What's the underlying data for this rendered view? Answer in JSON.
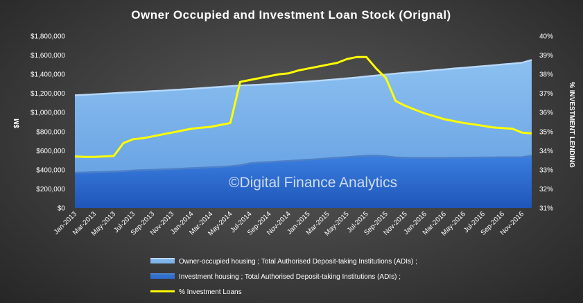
{
  "chart_data": {
    "type": "area",
    "title": "Owner Occupied and Investment Loan Stock (Orignal)",
    "ylabel": "$M",
    "y2label": "% INVESTMENT LENDING",
    "ylim": [
      0,
      1800000
    ],
    "y2lim": [
      31,
      40
    ],
    "grid": false,
    "legend_position": "bottom",
    "watermark": "©Digital Finance Analytics",
    "y_ticks": [
      "$0",
      "$200,000",
      "$400,000",
      "$600,000",
      "$800,000",
      "$1,000,000",
      "$1,200,000",
      "$1,400,000",
      "$1,600,000",
      "$1,800,000"
    ],
    "y2_ticks": [
      "31%",
      "32%",
      "33%",
      "34%",
      "35%",
      "36%",
      "37%",
      "38%",
      "39%",
      "40%"
    ],
    "x": [
      "Jan-2013",
      "Feb-2013",
      "Mar-2013",
      "Apr-2013",
      "May-2013",
      "Jun-2013",
      "Jul-2013",
      "Aug-2013",
      "Sep-2013",
      "Oct-2013",
      "Nov-2013",
      "Dec-2013",
      "Jan-2014",
      "Feb-2014",
      "Mar-2014",
      "Apr-2014",
      "May-2014",
      "Jun-2014",
      "Jul-2014",
      "Aug-2014",
      "Sep-2014",
      "Oct-2014",
      "Nov-2014",
      "Dec-2014",
      "Jan-2015",
      "Feb-2015",
      "Mar-2015",
      "Apr-2015",
      "May-2015",
      "Jun-2015",
      "Jul-2015",
      "Aug-2015",
      "Sep-2015",
      "Oct-2015",
      "Nov-2015",
      "Dec-2015",
      "Jan-2016",
      "Feb-2016",
      "Mar-2016",
      "Apr-2016",
      "May-2016",
      "Jun-2016",
      "Jul-2016",
      "Aug-2016",
      "Sep-2016",
      "Oct-2016",
      "Nov-2016",
      "Dec-2016"
    ],
    "x_tick_labels": [
      "Jan-2013",
      "Mar-2013",
      "May-2013",
      "Jul-2013",
      "Sep-2013",
      "Nov-2013",
      "Jan-2014",
      "Mar-2014",
      "May-2014",
      "Jul-2014",
      "Sep-2014",
      "Nov-2014",
      "Jan-2015",
      "Mar-2015",
      "May-2015",
      "Jul-2015",
      "Sep-2015",
      "Nov-2015",
      "Jan-2016",
      "Mar-2016",
      "May-2016",
      "Jul-2016",
      "Sep-2016",
      "Nov-2016"
    ],
    "series": [
      {
        "name": "Owner-occupied housing ;  Total Authorised Deposit-taking Institutions (ADIs) ;",
        "axis": "left",
        "color": "#7fb4ea",
        "values": [
          1180000,
          1185000,
          1190000,
          1196000,
          1202000,
          1208000,
          1213000,
          1218000,
          1224000,
          1229000,
          1235000,
          1241000,
          1248000,
          1255000,
          1262000,
          1269000,
          1276000,
          1283000,
          1286000,
          1291000,
          1297000,
          1303000,
          1310000,
          1317000,
          1324000,
          1332000,
          1340000,
          1348000,
          1357000,
          1367000,
          1377000,
          1387000,
          1397000,
          1407000,
          1416000,
          1425000,
          1433000,
          1442000,
          1451000,
          1460000,
          1468000,
          1477000,
          1485000,
          1494000,
          1503000,
          1512000,
          1521000,
          1550000
        ]
      },
      {
        "name": "Investment housing ;  Total Authorised Deposit-taking Institutions (ADIs) ;",
        "axis": "left",
        "color": "#2f6fcf",
        "values": [
          370000,
          372000,
          375000,
          378000,
          382000,
          387000,
          393000,
          397000,
          400000,
          404000,
          408000,
          412000,
          417000,
          421000,
          426000,
          431000,
          438000,
          447000,
          468000,
          476000,
          481000,
          487000,
          493000,
          499000,
          505000,
          512000,
          519000,
          526000,
          533000,
          540000,
          546000,
          548000,
          541000,
          530000,
          526000,
          525000,
          525000,
          525000,
          525000,
          526000,
          527000,
          528000,
          529000,
          530000,
          531000,
          532000,
          533000,
          548000
        ]
      },
      {
        "name": "% Investment Loans",
        "axis": "right",
        "color": "#ffff00",
        "values": [
          33.7,
          33.68,
          33.68,
          33.7,
          33.72,
          34.4,
          34.6,
          34.65,
          34.75,
          34.85,
          34.95,
          35.05,
          35.15,
          35.2,
          35.25,
          35.35,
          35.45,
          37.6,
          37.7,
          37.8,
          37.9,
          38.0,
          38.05,
          38.2,
          38.3,
          38.4,
          38.5,
          38.6,
          38.8,
          38.9,
          38.9,
          38.3,
          37.8,
          36.6,
          36.35,
          36.15,
          35.95,
          35.8,
          35.65,
          35.55,
          35.45,
          35.38,
          35.3,
          35.22,
          35.18,
          35.15,
          34.95,
          34.9
        ]
      }
    ]
  }
}
